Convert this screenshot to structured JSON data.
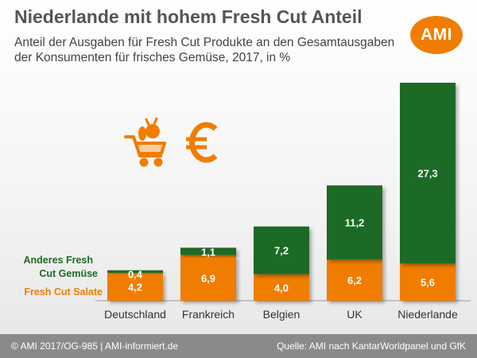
{
  "title": "Niederlande mit hohem Fresh Cut Anteil",
  "subtitle": "Anteil der Ausgaben für Fresh Cut Produkte an den Gesamtausgaben der Konsumenten für frisches Gemüse, 2017,  in %",
  "logo_text": "AMI",
  "footer": {
    "left": "© AMI 2017/OG-985 | AMI-informiert.de",
    "right": "Quelle: AMI nach KantarWorldpanel und GfK"
  },
  "icons": [
    "shopping-cart-vegetables-icon",
    "euro-icon"
  ],
  "colors": {
    "salate": "#f07d00",
    "gemuese": "#1d6b25",
    "accent": "#f07d00"
  },
  "chart_data": {
    "type": "bar",
    "stacked": true,
    "categories": [
      "Deutschland",
      "Frankreich",
      "Belgien",
      "UK",
      "Niederlande"
    ],
    "series": [
      {
        "name": "Fresh Cut Salate",
        "values": [
          4.2,
          6.9,
          4.0,
          6.2,
          5.6
        ],
        "labels": [
          "4,2",
          "6,9",
          "4,0",
          "6,2",
          "5,6"
        ],
        "color": "#f07d00"
      },
      {
        "name": "Anderes Fresh Cut Gemüse",
        "values": [
          0.4,
          1.1,
          7.2,
          11.2,
          27.3
        ],
        "labels": [
          "0,4",
          "1,1",
          "7,2",
          "11,2",
          "27,3"
        ],
        "color": "#1d6b25"
      }
    ],
    "legend_lines": {
      "gemuese": [
        "Anderes Fresh",
        "Cut Gemüse"
      ],
      "salate": "Fresh Cut Salate"
    },
    "legend_position": "left",
    "ylim": [
      0,
      33
    ],
    "grid": false
  }
}
